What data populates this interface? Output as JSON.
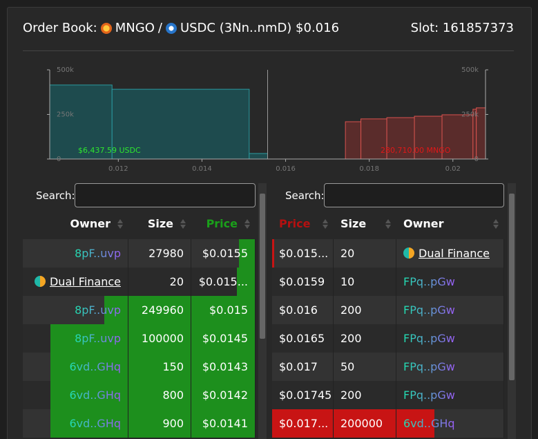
{
  "header": {
    "title_prefix": "Order Book:",
    "base": "MNGO",
    "separator": "/",
    "quote": "USDC (3Nn..nmD) $0.016",
    "slot": "Slot: 161857373"
  },
  "depth_chart": {
    "xlim": [
      0.01036,
      0.02078
    ],
    "ylim": [
      0,
      500000
    ],
    "xticks": [
      0.012,
      0.014,
      0.016,
      0.018,
      0.02
    ],
    "yticks": [
      0,
      {
        "value": 250000,
        "label": "250k"
      },
      {
        "value": 500000,
        "label": "500k"
      }
    ],
    "mid_price": 0.01557,
    "bids": {
      "color": "#1e4b4e",
      "line": "#2a9ba0",
      "label": "$6,437.59 USDC",
      "price": [
        0.01036,
        0.01185,
        0.01513
      ],
      "depth": [
        415000,
        391000,
        31000
      ]
    },
    "asks": {
      "color": "#5a2c2b",
      "line": "#d9534f",
      "label": "280,710.00 MNGO",
      "price": [
        0.01743,
        0.0178,
        0.01842,
        0.01908,
        0.01974,
        0.02048,
        0.02056
      ],
      "depth": [
        209000,
        225000,
        232000,
        240000,
        248000,
        279000,
        287000
      ]
    }
  },
  "bids": {
    "search_label": "Search:",
    "columns": [
      "Owner",
      "Size",
      "Price"
    ],
    "rows": [
      {
        "owner": "8pF..uvp",
        "size": 27980,
        "price": "$0.0155",
        "depth_bar": 7
      },
      {
        "owner": "Dual Finance",
        "linked": true,
        "size": 20,
        "price": "$0.015...",
        "depth_bar": 8
      },
      {
        "owner": "8pF..uvp",
        "size": 249960,
        "price": "$0.015",
        "depth_bar": 65
      },
      {
        "owner": "8pF..uvp",
        "size": 100000,
        "price": "$0.0145",
        "depth_bar": 88
      },
      {
        "owner": "6vd..GHq",
        "size": 150,
        "price": "$0.0143",
        "depth_bar": 88
      },
      {
        "owner": "6vd..GHq",
        "size": 800,
        "price": "$0.0142",
        "depth_bar": 88
      },
      {
        "owner": "6vd..GHq",
        "size": 900,
        "price": "$0.0141",
        "depth_bar": 88
      }
    ]
  },
  "asks": {
    "search_label": "Search:",
    "columns": [
      "Price",
      "Size",
      "Owner"
    ],
    "rows": [
      {
        "price": "$0.015...",
        "size": 20,
        "owner": "Dual Finance",
        "linked": true,
        "depth_bar": 1
      },
      {
        "price": "$0.0159",
        "size": 10,
        "owner": "FPq..pGw",
        "depth_bar": 0
      },
      {
        "price": "$0.016",
        "size": 200,
        "owner": "FPq..pGw",
        "depth_bar": 0
      },
      {
        "price": "$0.0165",
        "size": 200,
        "owner": "FPq..pGw",
        "depth_bar": 0
      },
      {
        "price": "$0.017",
        "size": 50,
        "owner": "FPq..pGw",
        "depth_bar": 0
      },
      {
        "price": "$0.01745",
        "size": 200,
        "owner": "FPq..pGw",
        "depth_bar": 0
      },
      {
        "price": "$0.017...",
        "size": 200000,
        "owner": "6vd..GHq",
        "depth_bar": 70
      }
    ]
  }
}
